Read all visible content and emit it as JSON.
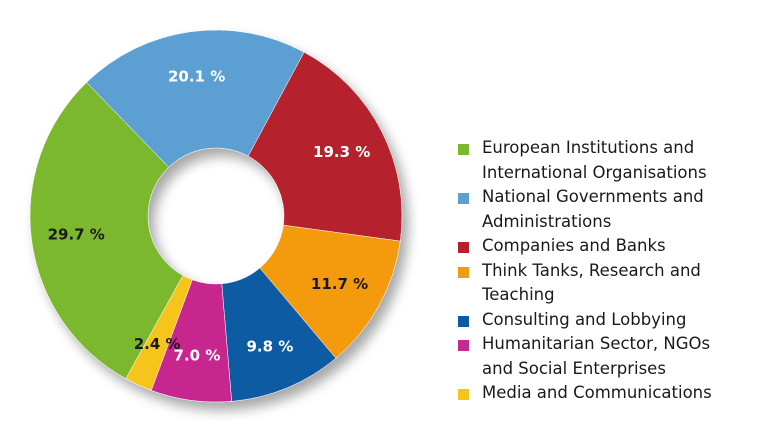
{
  "chart_data": {
    "type": "pie",
    "donut": true,
    "legend_position": "right",
    "slices": [
      {
        "label": "European Institutions and\nInternational Organisations",
        "value": 29.7,
        "display": "29.7 %",
        "color": "#7cb82f",
        "label_color": "#1a1a1a"
      },
      {
        "label": "National Governments and\nAdministrations",
        "value": 20.1,
        "display": "20.1 %",
        "color": "#5b9fd3",
        "label_color": "#ffffff"
      },
      {
        "label": "Companies and Banks",
        "value": 19.3,
        "display": "19.3 %",
        "color": "#b5202e",
        "label_color": "#ffffff"
      },
      {
        "label": "Think Tanks, Research and\nTeaching",
        "value": 11.7,
        "display": "11.7 %",
        "color": "#f39a0f",
        "label_color": "#1a1a1a"
      },
      {
        "label": "Consulting and Lobbying",
        "value": 9.8,
        "display": "9.8 %",
        "color": "#0a5ba3",
        "label_color": "#ffffff"
      },
      {
        "label": "Humanitarian Sector, NGOs\nand Social Enterprises",
        "value": 7.0,
        "display": "7.0 %",
        "color": "#c7288f",
        "label_color": "#ffffff"
      },
      {
        "label": "Media and Communications",
        "value": 2.4,
        "display": "2.4 %",
        "color": "#f6c51b",
        "label_color": "#1a1a1a"
      }
    ]
  }
}
